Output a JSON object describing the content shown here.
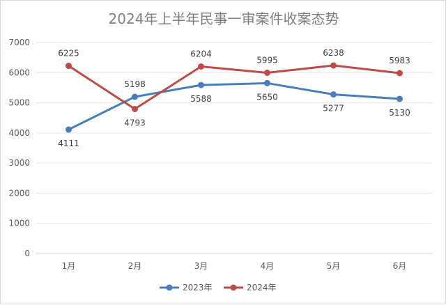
{
  "chart_data": {
    "type": "line",
    "title": "2024年上半年民事一审案件收案态势",
    "categories": [
      "1月",
      "2月",
      "3月",
      "4月",
      "5月",
      "6月"
    ],
    "ylim": [
      0,
      7000
    ],
    "yticks": [
      0,
      1000,
      2000,
      3000,
      4000,
      5000,
      6000,
      7000
    ],
    "grid": true,
    "legend_position": "bottom",
    "series": [
      {
        "name": "2023年",
        "color": "#4a7ebb",
        "values": [
          4111,
          5198,
          5588,
          5650,
          5277,
          5130
        ]
      },
      {
        "name": "2024年",
        "color": "#be4b48",
        "values": [
          6225,
          4793,
          6204,
          5995,
          6238,
          5983
        ]
      }
    ]
  }
}
